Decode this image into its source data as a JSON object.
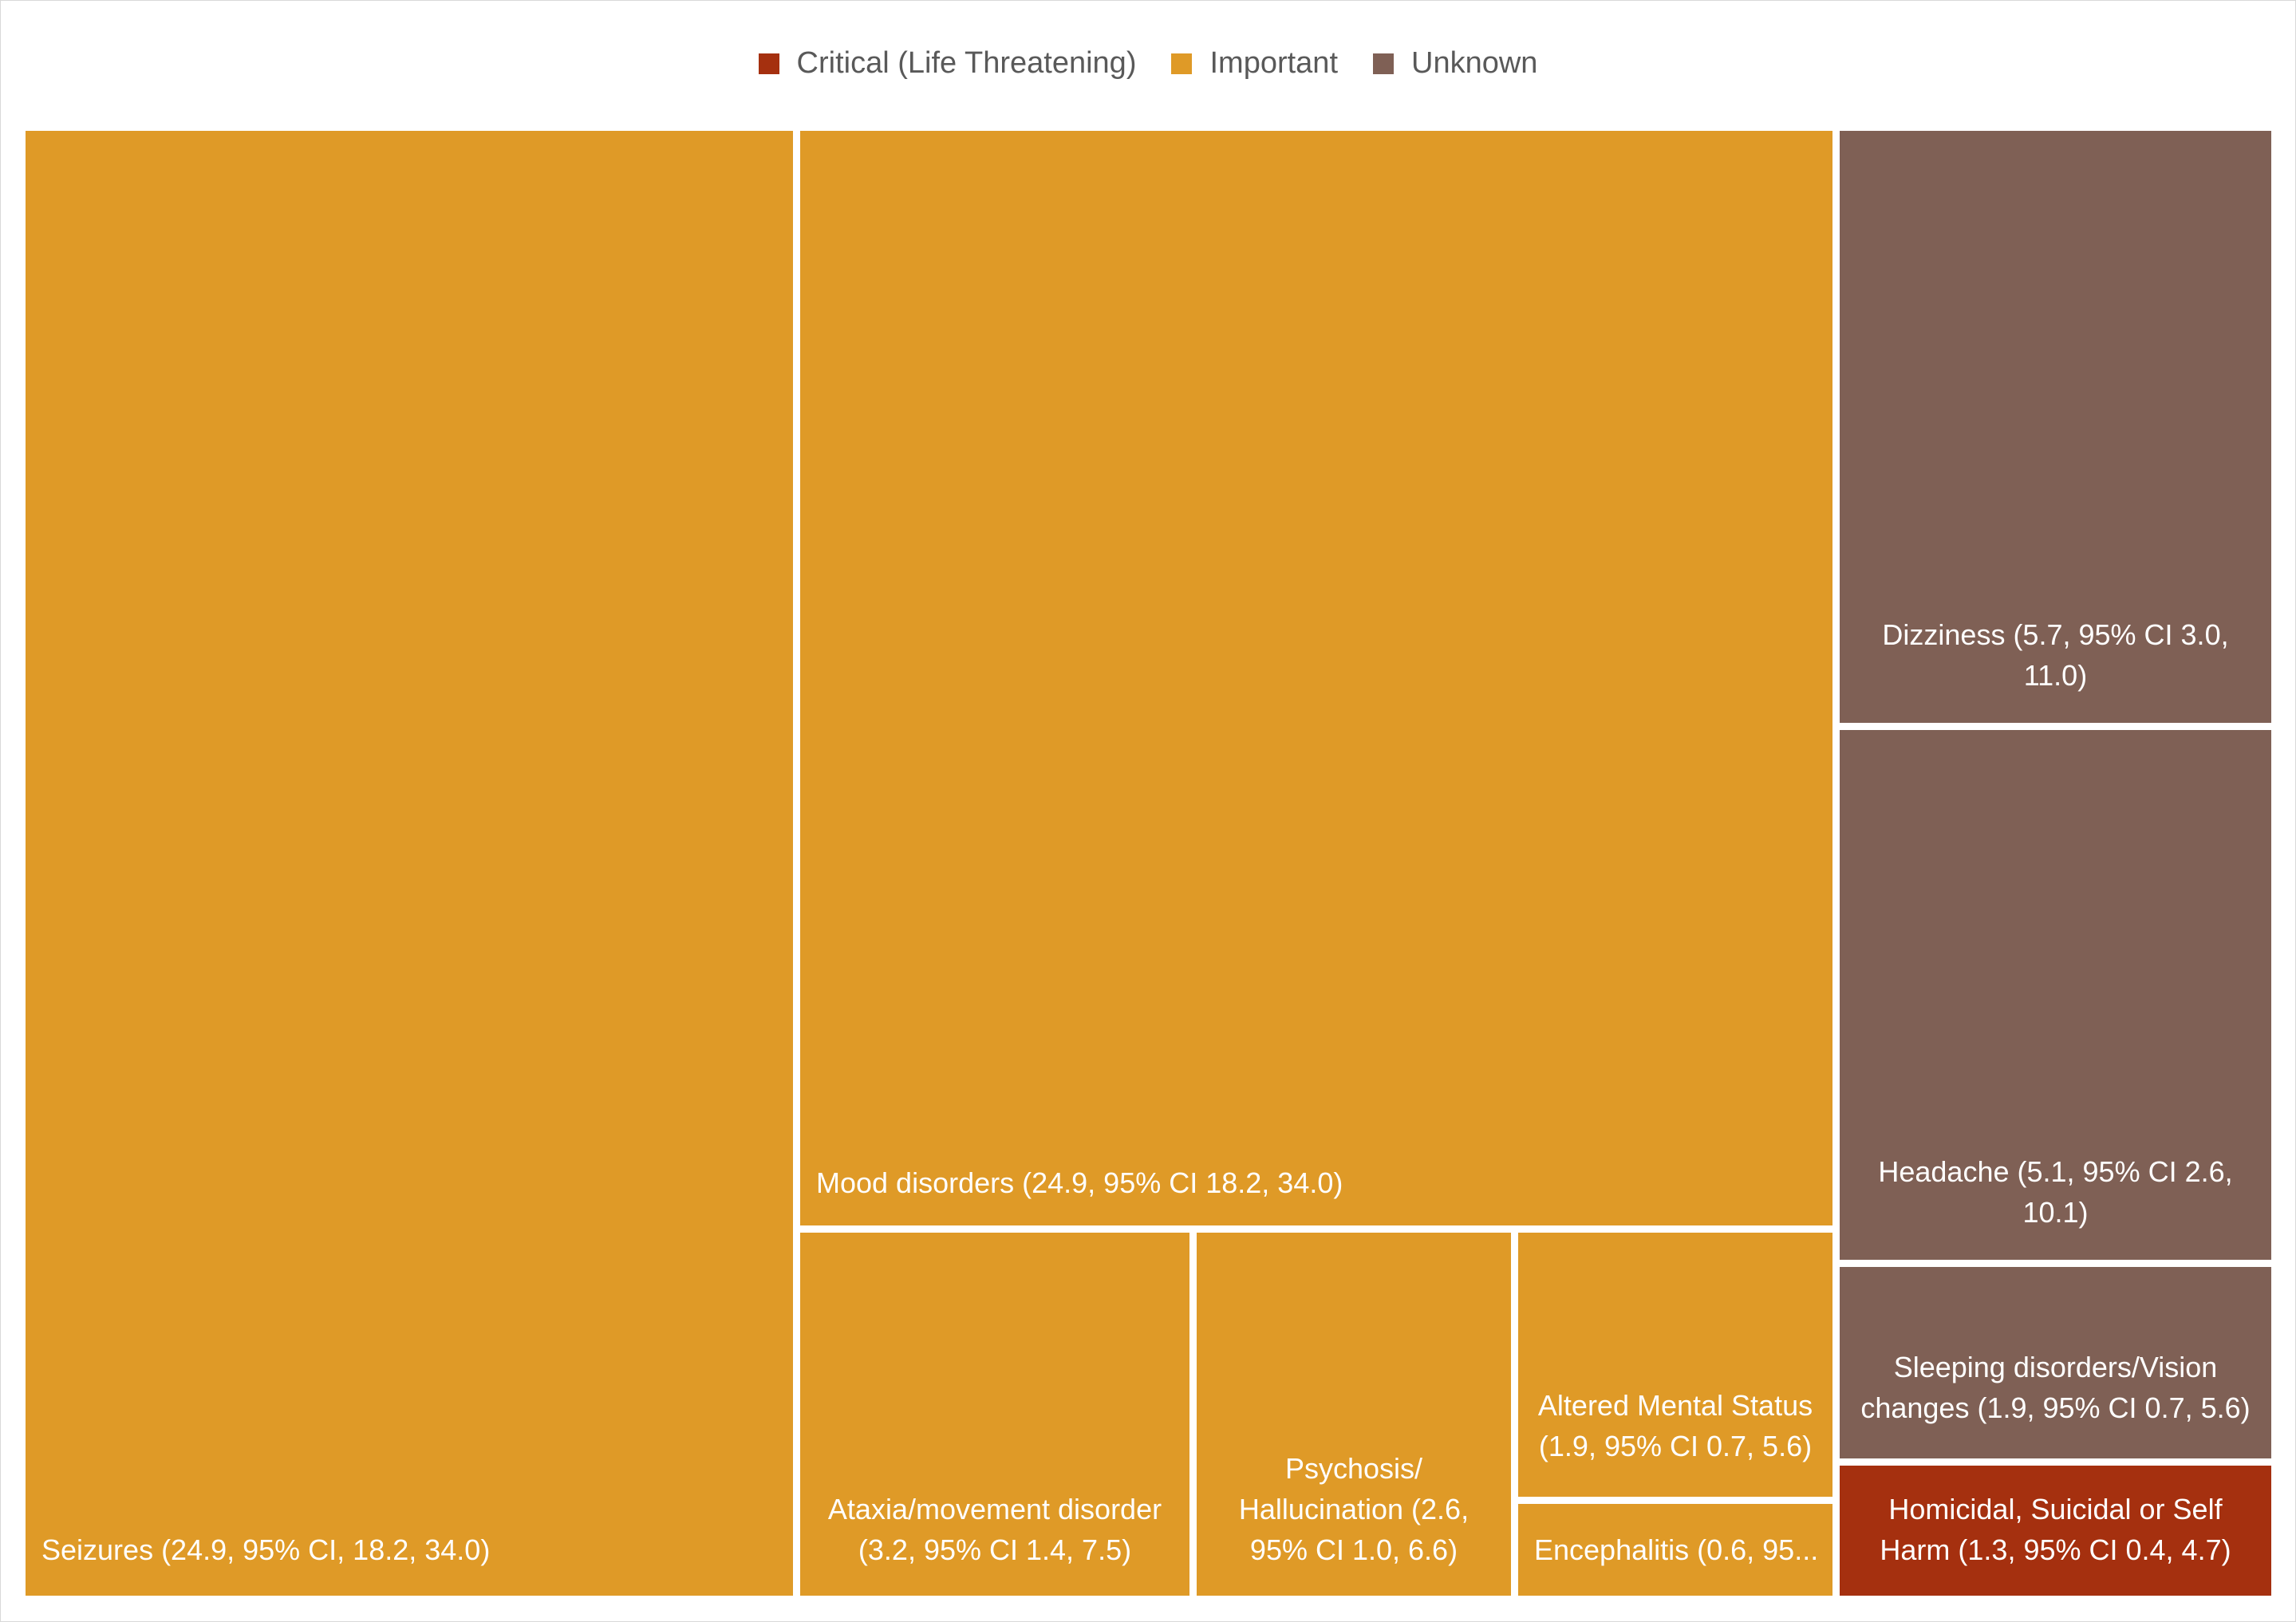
{
  "chart_data": {
    "type": "treemap",
    "legend": [
      {
        "name": "Critical (Life Threatening)",
        "color": "#A5300F"
      },
      {
        "name": "Important",
        "color": "#DF9A27"
      },
      {
        "name": "Unknown",
        "color": "#7F6055"
      }
    ],
    "legend_position": "top-center",
    "items": [
      {
        "label": "Seizures (24.9, 95% CI, 18.2, 34.0)",
        "value": 24.9,
        "category": "Important"
      },
      {
        "label": "Mood disorders (24.9, 95% CI 18.2, 34.0)",
        "value": 24.9,
        "category": "Important"
      },
      {
        "label": "Ataxia/movement disorder\n(3.2, 95% CI 1.4, 7.5)",
        "value": 3.2,
        "category": "Important"
      },
      {
        "label": "Psychosis/\nHallucination (2.6,\n95% CI 1.0, 6.6)",
        "value": 2.6,
        "category": "Important"
      },
      {
        "label": "Altered Mental Status\n(1.9, 95% CI 0.7, 5.6)",
        "value": 1.9,
        "category": "Important"
      },
      {
        "label": "Encephalitis (0.6, 95...",
        "value": 0.6,
        "category": "Important"
      },
      {
        "label": "Dizziness (5.7, 95% CI 3.0,\n11.0)",
        "value": 5.7,
        "category": "Unknown"
      },
      {
        "label": "Headache (5.1, 95% CI 2.6,\n10.1)",
        "value": 5.1,
        "category": "Unknown"
      },
      {
        "label": "Sleeping disorders/Vision\nchanges (1.9, 95% CI 0.7, 5.6)",
        "value": 1.9,
        "category": "Unknown"
      },
      {
        "label": "Homicidal, Suicidal or Self\nHarm (1.3, 95% CI 0.4, 4.7)",
        "value": 1.3,
        "category": "Critical (Life Threatening)"
      }
    ]
  }
}
